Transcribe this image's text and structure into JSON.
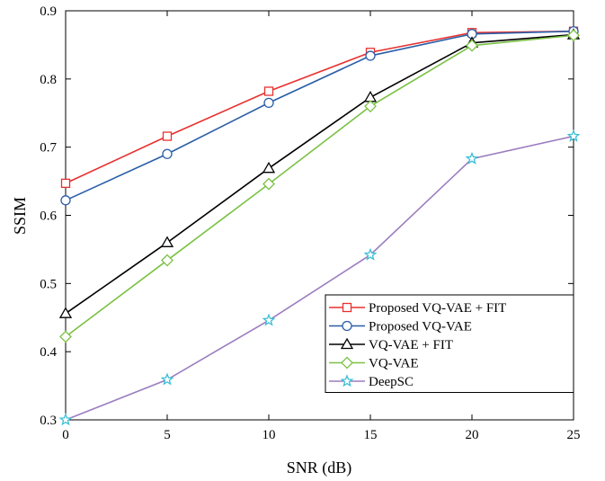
{
  "chart_data": {
    "type": "line",
    "xlabel": "SNR (dB)",
    "ylabel": "SSIM",
    "xlim": [
      0,
      25
    ],
    "ylim": [
      0.3,
      0.9
    ],
    "xticks": [
      "0",
      "5",
      "10",
      "15",
      "20",
      "25"
    ],
    "yticks": [
      "0.3",
      "0.4",
      "0.5",
      "0.6",
      "0.7",
      "0.8",
      "0.9"
    ],
    "grid": false,
    "legend_position": "bottom-right",
    "x": [
      0,
      5,
      10,
      15,
      20,
      25
    ],
    "series": [
      {
        "name": "Proposed VQ-VAE + FIT",
        "marker": "square",
        "color": "#e8312f",
        "values": [
          0.647,
          0.716,
          0.782,
          0.839,
          0.868,
          0.87
        ]
      },
      {
        "name": "Proposed VQ-VAE",
        "marker": "circle",
        "color": "#2a5ea8",
        "values": [
          0.622,
          0.69,
          0.765,
          0.834,
          0.866,
          0.87
        ]
      },
      {
        "name": "VQ-VAE + FIT",
        "marker": "triangle",
        "color": "#000000",
        "values": [
          0.456,
          0.56,
          0.669,
          0.773,
          0.853,
          0.865
        ]
      },
      {
        "name": "VQ-VAE",
        "marker": "diamond",
        "color": "#7ac143",
        "values": [
          0.422,
          0.534,
          0.646,
          0.76,
          0.849,
          0.864
        ]
      },
      {
        "name": "DeepSC",
        "marker": "star",
        "color": "#9b7dbf",
        "marker_color": "#3bbfd6",
        "values": [
          0.3,
          0.359,
          0.446,
          0.542,
          0.683,
          0.716
        ]
      }
    ]
  }
}
